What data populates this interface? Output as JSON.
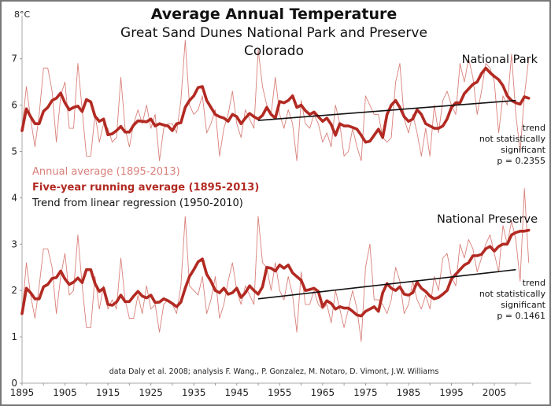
{
  "chart_data": {
    "type": "line",
    "title": "Average Annual Temperature",
    "subtitle": "Great Sand Dunes National Park and Preserve",
    "subtitle2": "Colorado",
    "ylabel": "8°C",
    "xlabel": "",
    "ylim": [
      0,
      8
    ],
    "xlim": [
      1895,
      2013
    ],
    "y_ticks": [
      "0",
      "1",
      "2",
      "3",
      "4",
      "5",
      "6",
      "7"
    ],
    "x_ticks": [
      "1895",
      "1905",
      "1915",
      "1925",
      "1935",
      "1945",
      "1955",
      "1965",
      "1975",
      "1985",
      "1995",
      "2005"
    ],
    "legend": [
      {
        "label": "Annual average (1895-2013)",
        "color": "#d9807a"
      },
      {
        "label": "Five-year running average (1895-2013)",
        "color": "#b22a22"
      },
      {
        "label": "Trend from linear regression (1950-2010)",
        "color": "#111111"
      }
    ],
    "legend_position": "center-left",
    "credit": "data Daly et al. 2008; analysis F. Wang., P. Gonzalez, M. Notaro, D. Vimont, J.W. Williams",
    "colors": {
      "annual": "#d9807a",
      "running": "#b22a22",
      "trend": "#111111"
    },
    "panels": [
      {
        "name": "National Park",
        "note": [
          "trend",
          "not statistically",
          "significant",
          "p = 0.2355"
        ],
        "annual": [
          5.5,
          6.4,
          5.7,
          5.1,
          5.8,
          6.8,
          6.8,
          6.3,
          5.2,
          6.2,
          6.5,
          5.5,
          5.5,
          6.9,
          5.9,
          4.9,
          4.9,
          5.8,
          5.2,
          5.6,
          5.5,
          5.2,
          5.3,
          6.6,
          5.5,
          5.1,
          5.6,
          5.9,
          5.6,
          6.0,
          5.5,
          5.8,
          4.8,
          5.5,
          5.6,
          5.6,
          5.4,
          6.1,
          7.4,
          6.0,
          5.8,
          5.9,
          6.2,
          5.4,
          5.6,
          5.9,
          4.9,
          5.5,
          5.8,
          6.3,
          5.6,
          5.3,
          5.9,
          5.7,
          5.5,
          7.2,
          6.4,
          6.0,
          5.8,
          6.6,
          5.8,
          5.5,
          5.9,
          5.6,
          4.8,
          6.1,
          5.6,
          5.5,
          5.8,
          5.6,
          5.2,
          5.4,
          5.1,
          6.0,
          5.6,
          4.9,
          5.0,
          5.5,
          5.1,
          4.8,
          6.2,
          6.0,
          5.8,
          5.8,
          5.3,
          5.2,
          5.3,
          6.5,
          6.9,
          5.7,
          5.4,
          5.8,
          5.4,
          4.9,
          5.5,
          4.9,
          6.0,
          5.4,
          6.1,
          6.3,
          6.0,
          5.8,
          6.9,
          6.5,
          7.0,
          6.6,
          5.8,
          6.3,
          6.9,
          6.8,
          6.5,
          5.4,
          6.2,
          6.0,
          7.1,
          5.8,
          5.0,
          6.2,
          7.0
        ],
        "running_avg_years": [
          1895,
          1896,
          1897,
          1898,
          1899,
          1900,
          1901,
          1902,
          1903,
          1904,
          1905,
          1906,
          1907,
          1908,
          1909,
          1910,
          1911,
          1912,
          1913,
          1914,
          1915,
          1916,
          1917,
          1918,
          1919,
          1920,
          1921,
          1922,
          1923,
          1924,
          1925,
          1926,
          1927,
          1928,
          1929,
          1930,
          1931,
          1932,
          1933,
          1934,
          1935,
          1936,
          1937,
          1938,
          1939,
          1940,
          1941,
          1942,
          1943,
          1944,
          1945,
          1946,
          1947,
          1948,
          1949,
          1950,
          1951,
          1952,
          1953,
          1954,
          1955,
          1956,
          1957,
          1958,
          1959,
          1960,
          1961,
          1962,
          1963,
          1964,
          1965,
          1966,
          1967,
          1968,
          1969,
          1970,
          1971,
          1972,
          1973,
          1974,
          1975,
          1976,
          1977,
          1978,
          1979,
          1980,
          1981,
          1982,
          1983,
          1984,
          1985,
          1986,
          1987,
          1988,
          1989,
          1990,
          1991,
          1992,
          1993,
          1994,
          1995,
          1996,
          1997,
          1998,
          1999,
          2000,
          2001,
          2002,
          2003,
          2004,
          2005,
          2006,
          2007,
          2008,
          2009,
          2010,
          2011,
          2012,
          2013
        ],
        "running": [
          5.45,
          5.92,
          5.75,
          5.6,
          5.6,
          5.87,
          5.95,
          6.1,
          6.15,
          6.26,
          6.05,
          5.9,
          5.95,
          5.98,
          5.86,
          6.12,
          6.07,
          5.76,
          5.65,
          5.7,
          5.36,
          5.38,
          5.45,
          5.54,
          5.42,
          5.42,
          5.57,
          5.66,
          5.65,
          5.64,
          5.7,
          5.55,
          5.6,
          5.57,
          5.55,
          5.45,
          5.6,
          5.62,
          5.95,
          6.1,
          6.2,
          6.38,
          6.4,
          6.1,
          5.95,
          5.8,
          5.75,
          5.72,
          5.65,
          5.8,
          5.75,
          5.6,
          5.72,
          5.82,
          5.75,
          5.7,
          5.78,
          5.95,
          5.8,
          5.72,
          6.08,
          6.05,
          6.1,
          6.2,
          5.95,
          6.0,
          5.88,
          5.8,
          5.85,
          5.75,
          5.65,
          5.72,
          5.58,
          5.35,
          5.6,
          5.55,
          5.55,
          5.52,
          5.48,
          5.35,
          5.2,
          5.22,
          5.35,
          5.48,
          5.3,
          5.8,
          6.0,
          6.1,
          5.95,
          5.75,
          5.65,
          5.7,
          5.9,
          5.8,
          5.6,
          5.55,
          5.5,
          5.5,
          5.55,
          5.7,
          5.95,
          6.05,
          6.05,
          6.25,
          6.35,
          6.45,
          6.5,
          6.68,
          6.8,
          6.7,
          6.62,
          6.55,
          6.42,
          6.2,
          6.1,
          6.05,
          6.02,
          6.18,
          6.15
        ],
        "trend": {
          "x": [
            1950,
            2010
          ],
          "y": [
            5.67,
            6.1
          ]
        }
      },
      {
        "name": "National Preserve",
        "note": [
          "trend",
          "not statistically",
          "significant",
          "p = 0.1461"
        ],
        "annual": [
          1.5,
          2.6,
          1.9,
          1.4,
          2.1,
          2.9,
          2.9,
          2.5,
          1.5,
          2.3,
          2.8,
          1.9,
          2.0,
          3.2,
          2.1,
          1.2,
          1.2,
          2.3,
          1.6,
          2.1,
          1.6,
          1.8,
          1.6,
          2.7,
          1.8,
          1.4,
          1.4,
          1.9,
          1.5,
          2.1,
          1.6,
          1.7,
          1.1,
          1.7,
          1.8,
          1.7,
          1.5,
          2.1,
          3.6,
          2.1,
          2.0,
          1.9,
          2.3,
          1.5,
          1.8,
          2.3,
          1.4,
          1.7,
          2.2,
          2.6,
          2.0,
          1.7,
          2.1,
          1.9,
          1.7,
          3.6,
          2.6,
          2.5,
          2.0,
          2.6,
          2.0,
          1.8,
          2.3,
          1.9,
          1.1,
          2.4,
          1.7,
          1.7,
          2.0,
          1.7,
          1.6,
          1.7,
          1.3,
          2.0,
          1.6,
          1.2,
          1.6,
          2.0,
          1.6,
          0.9,
          2.5,
          3.0,
          1.8,
          1.8,
          1.7,
          1.5,
          1.8,
          2.5,
          2.2,
          1.5,
          1.7,
          2.2,
          1.8,
          1.6,
          1.9,
          1.6,
          2.3,
          2.0,
          2.7,
          2.8,
          2.3,
          2.1,
          3.0,
          2.7,
          3.1,
          2.9,
          2.4,
          2.7,
          3.0,
          3.2,
          2.8,
          2.4,
          3.4,
          3.0,
          3.5,
          3.1,
          2.2,
          4.2,
          2.6
        ],
        "running": [
          1.5,
          2.05,
          1.95,
          1.82,
          1.82,
          2.08,
          2.13,
          2.26,
          2.28,
          2.42,
          2.25,
          2.13,
          2.18,
          2.27,
          2.17,
          2.45,
          2.45,
          2.15,
          1.98,
          2.05,
          1.7,
          1.68,
          1.75,
          1.9,
          1.76,
          1.76,
          1.88,
          1.98,
          1.88,
          1.84,
          1.9,
          1.74,
          1.75,
          1.82,
          1.78,
          1.72,
          1.65,
          1.75,
          2.05,
          2.3,
          2.45,
          2.62,
          2.68,
          2.35,
          2.2,
          2.0,
          1.95,
          2.05,
          1.92,
          1.95,
          2.05,
          1.85,
          1.95,
          2.1,
          2.0,
          1.92,
          2.08,
          2.5,
          2.48,
          2.42,
          2.55,
          2.48,
          2.55,
          2.38,
          2.3,
          2.22,
          2.0,
          2.02,
          2.05,
          1.98,
          1.65,
          1.78,
          1.72,
          1.6,
          1.65,
          1.62,
          1.62,
          1.55,
          1.47,
          1.45,
          1.55,
          1.6,
          1.65,
          1.55,
          1.95,
          2.15,
          2.05,
          2.0,
          2.08,
          1.92,
          1.9,
          1.95,
          2.18,
          2.05,
          1.98,
          1.88,
          1.82,
          1.85,
          1.92,
          2.0,
          2.25,
          2.35,
          2.45,
          2.55,
          2.6,
          2.75,
          2.75,
          2.78,
          2.9,
          2.95,
          2.85,
          2.95,
          3.0,
          3.0,
          3.2,
          3.25,
          3.28,
          3.28,
          3.3
        ],
        "trend": {
          "x": [
            1950,
            2010
          ],
          "y": [
            1.82,
            2.45
          ]
        }
      }
    ]
  }
}
